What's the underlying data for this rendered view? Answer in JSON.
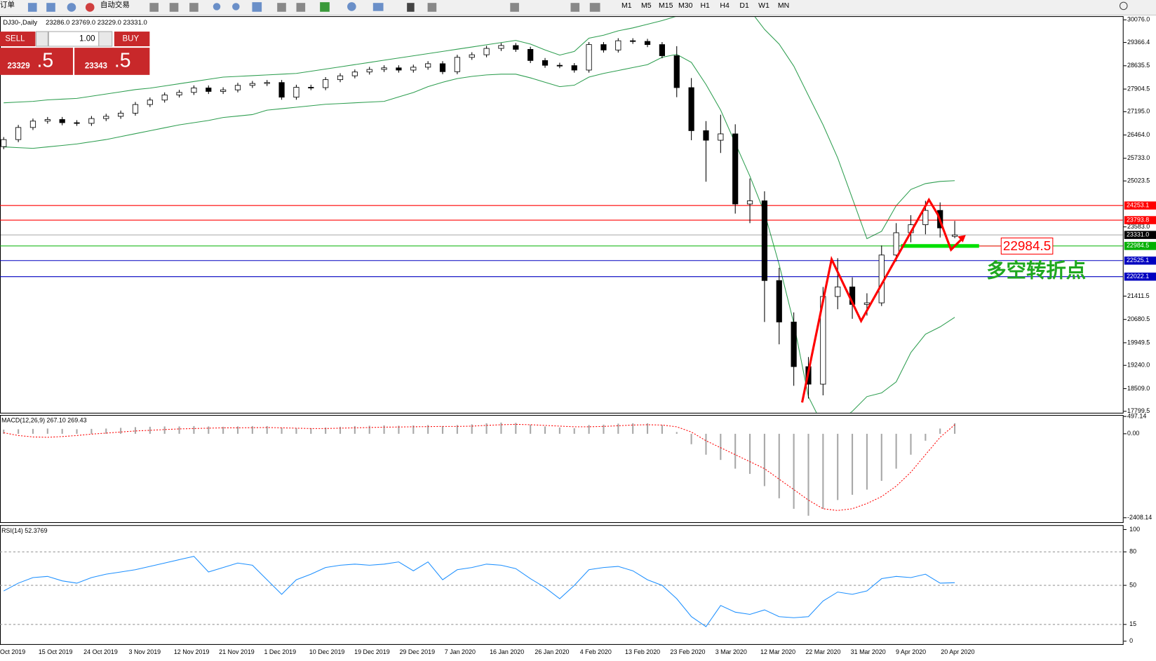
{
  "toolbar": {
    "order": "订单",
    "auto_trade": "自动交易",
    "timeframes": [
      "M1",
      "M5",
      "M15",
      "M30",
      "H1",
      "H4",
      "D1",
      "W1",
      "MN"
    ]
  },
  "trade_panel": {
    "sell": "SELL",
    "lots": "1.00",
    "buy": "BUY",
    "sell_main": "23329",
    "sell_tail": ".5",
    "buy_main": "23343",
    "buy_tail": ".5"
  },
  "chart_data": {
    "type": "candlestick",
    "title": "DJ30-,Daily",
    "ohlc_header": "23286.0 23769.0 23229.0 23331.0",
    "ylim": [
      17799.5,
      30076
    ],
    "yticks": [
      {
        "value": 30076,
        "label": "30076.0"
      },
      {
        "value": 29366.4,
        "label": "29366.4"
      },
      {
        "value": 28635.5,
        "label": "28635.5"
      },
      {
        "value": 27904.5,
        "label": "27904.5"
      },
      {
        "value": 27195,
        "label": "27195.0"
      },
      {
        "value": 26464,
        "label": "26464.0"
      },
      {
        "value": 25733,
        "label": "25733.0"
      },
      {
        "value": 25023.5,
        "label": "25023.5"
      },
      {
        "value": 23583,
        "label": "23583.0"
      },
      {
        "value": 21411.5,
        "label": "21411.5"
      },
      {
        "value": 20680.5,
        "label": "20680.5"
      },
      {
        "value": 19949.5,
        "label": "19949.5"
      },
      {
        "value": 19240,
        "label": "19240.0"
      },
      {
        "value": 18509,
        "label": "18509.0"
      },
      {
        "value": 17799.5,
        "label": "17799.5"
      }
    ],
    "levels": [
      {
        "value": 24253.1,
        "label": "24253.1",
        "color": "#ff0000"
      },
      {
        "value": 23793.8,
        "label": "23793.8",
        "color": "#ff0000"
      },
      {
        "value": 23331,
        "label": "23331.0",
        "color": "#000000"
      },
      {
        "value": 22984.5,
        "label": "22984.5",
        "color": "#00b000"
      },
      {
        "value": 22525.1,
        "label": "22525.1",
        "color": "#0000c0"
      },
      {
        "value": 22022.1,
        "label": "22022.1",
        "color": "#0000c0"
      }
    ],
    "x_labels": [
      "Oct 2019",
      "15 Oct 2019",
      "24 Oct 2019",
      "3 Nov 2019",
      "12 Nov 2019",
      "21 Nov 2019",
      "1 Dec 2019",
      "10 Dec 2019",
      "19 Dec 2019",
      "29 Dec 2019",
      "7 Jan 2020",
      "16 Jan 2020",
      "26 Jan 2020",
      "4 Feb 2020",
      "13 Feb 2020",
      "23 Feb 2020",
      "3 Mar 2020",
      "12 Mar 2020",
      "22 Mar 2020",
      "31 Mar 2020",
      "9 Apr 2020",
      "20 Apr 2020"
    ],
    "ohlc": [
      [
        26100,
        26400,
        26020,
        26320
      ],
      [
        26320,
        26780,
        26240,
        26700
      ],
      [
        26700,
        26980,
        26620,
        26900
      ],
      [
        26900,
        27030,
        26820,
        26950
      ],
      [
        26950,
        27030,
        26770,
        26850
      ],
      [
        26850,
        26930,
        26750,
        26830
      ],
      [
        26830,
        27060,
        26750,
        26980
      ],
      [
        26980,
        27130,
        26900,
        27050
      ],
      [
        27050,
        27230,
        26970,
        27150
      ],
      [
        27150,
        27500,
        27070,
        27420
      ],
      [
        27420,
        27640,
        27340,
        27560
      ],
      [
        27560,
        27800,
        27480,
        27720
      ],
      [
        27720,
        27880,
        27640,
        27800
      ],
      [
        27800,
        28020,
        27720,
        27940
      ],
      [
        27940,
        28020,
        27750,
        27830
      ],
      [
        27830,
        27960,
        27750,
        27880
      ],
      [
        27880,
        28100,
        27800,
        28020
      ],
      [
        28020,
        28160,
        27940,
        28080
      ],
      [
        28080,
        28190,
        28000,
        28110
      ],
      [
        28110,
        28190,
        27570,
        27650
      ],
      [
        27650,
        28040,
        27570,
        27960
      ],
      [
        27960,
        28040,
        27870,
        27950
      ],
      [
        27950,
        28280,
        27870,
        28200
      ],
      [
        28200,
        28400,
        28120,
        28320
      ],
      [
        28320,
        28520,
        28240,
        28440
      ],
      [
        28440,
        28600,
        28360,
        28520
      ],
      [
        28520,
        28650,
        28440,
        28570
      ],
      [
        28570,
        28650,
        28420,
        28500
      ],
      [
        28500,
        28670,
        28420,
        28590
      ],
      [
        28590,
        28780,
        28510,
        28700
      ],
      [
        28700,
        28780,
        28370,
        28450
      ],
      [
        28450,
        28980,
        28370,
        28900
      ],
      [
        28900,
        29060,
        28820,
        28980
      ],
      [
        28980,
        29260,
        28900,
        29180
      ],
      [
        29180,
        29350,
        29100,
        29270
      ],
      [
        29270,
        29350,
        29070,
        29150
      ],
      [
        29150,
        29230,
        28720,
        28800
      ],
      [
        28800,
        28880,
        28570,
        28650
      ],
      [
        28650,
        28730,
        28560,
        28640
      ],
      [
        28640,
        28720,
        28420,
        28500
      ],
      [
        28500,
        29380,
        28420,
        29300
      ],
      [
        29300,
        29380,
        29050,
        29130
      ],
      [
        29130,
        29500,
        29050,
        29420
      ],
      [
        29420,
        29500,
        29320,
        29400
      ],
      [
        29400,
        29480,
        29220,
        29300
      ],
      [
        29300,
        29380,
        28870,
        28950
      ],
      [
        28950,
        29250,
        27650,
        27950
      ],
      [
        27950,
        28250,
        26300,
        26600
      ],
      [
        26600,
        26900,
        25000,
        26300
      ],
      [
        26300,
        27100,
        25900,
        26500
      ],
      [
        26500,
        26800,
        24000,
        24300
      ],
      [
        24300,
        25100,
        23700,
        24400
      ],
      [
        24400,
        24700,
        20600,
        21900
      ],
      [
        21900,
        22300,
        19900,
        20600
      ],
      [
        20600,
        20900,
        18600,
        19200
      ],
      [
        19200,
        19500,
        18200,
        18650
      ],
      [
        18650,
        21700,
        18300,
        21400
      ],
      [
        21400,
        22600,
        21000,
        21700
      ],
      [
        21700,
        22000,
        20700,
        21150
      ],
      [
        21150,
        21500,
        20800,
        21200
      ],
      [
        21200,
        23000,
        21100,
        22700
      ],
      [
        22700,
        23700,
        22500,
        23400
      ],
      [
        23400,
        23950,
        23100,
        23650
      ],
      [
        23650,
        24400,
        23350,
        24100
      ],
      [
        24100,
        24350,
        23250,
        23550
      ],
      [
        23286,
        23769,
        23229,
        23331
      ]
    ],
    "band_color": "#2e9e50",
    "bollinger_upper": [
      27474,
      27497,
      27520,
      27566,
      27589,
      27612,
      27681,
      27750,
      27819,
      27888,
      27934,
      28003,
      28072,
      28141,
      28210,
      28280,
      28303,
      28326,
      28349,
      28372,
      28395,
      28464,
      28533,
      28602,
      28671,
      28740,
      28809,
      28878,
      28947,
      29016,
      29086,
      29155,
      29224,
      29293,
      29362,
      29431,
      29316,
      29132,
      28970,
      29086,
      29500,
      29592,
      29730,
      29822,
      29937,
      30053,
      30190,
      30283,
      30375,
      30420,
      30420,
      30375,
      29777,
      29316,
      28625,
      27704,
      26783,
      25747,
      24479,
      23213,
      23444,
      24249,
      24756,
      24940,
      25009,
      25032
    ],
    "bollinger_lower": [
      26092,
      26069,
      26046,
      26092,
      26138,
      26184,
      26253,
      26322,
      26414,
      26506,
      26598,
      26690,
      26783,
      26852,
      26921,
      27013,
      27059,
      27105,
      27243,
      27289,
      27335,
      27381,
      27428,
      27451,
      27474,
      27497,
      27520,
      27658,
      27796,
      27980,
      28118,
      28233,
      28303,
      28349,
      28372,
      28372,
      28257,
      28118,
      27980,
      28026,
      28280,
      28395,
      28487,
      28579,
      28671,
      28901,
      28993,
      28740,
      28049,
      27243,
      26207,
      25170,
      24019,
      22407,
      20564,
      18261,
      17340,
      17456,
      17799,
      18261,
      18376,
      18722,
      19643,
      20219,
      20449,
      20748
    ],
    "macd": {
      "label": "MACD(12,26,9) 267.10 269.43",
      "ylim": [
        -2408.14,
        497.14
      ],
      "yticks": [
        {
          "value": 497.14,
          "label": "497.14"
        },
        {
          "value": 0,
          "label": "0.00"
        },
        {
          "value": -2408.14,
          "label": "-2408.14"
        }
      ],
      "histogram": [
        120,
        130,
        140,
        150,
        140,
        130,
        140,
        150,
        170,
        190,
        200,
        210,
        210,
        220,
        210,
        200,
        210,
        220,
        220,
        170,
        160,
        160,
        180,
        200,
        220,
        230,
        240,
        230,
        240,
        250,
        220,
        250,
        270,
        300,
        320,
        310,
        260,
        210,
        180,
        160,
        250,
        260,
        290,
        300,
        300,
        250,
        50,
        -300,
        -600,
        -750,
        -1000,
        -1150,
        -1500,
        -1850,
        -2150,
        -2350,
        -2150,
        -1900,
        -1750,
        -1600,
        -1350,
        -1000,
        -600,
        -200,
        150,
        300
      ],
      "signal": [
        30,
        -50,
        -90,
        -100,
        -80,
        -50,
        -10,
        20,
        50,
        80,
        100,
        120,
        140,
        150,
        160,
        170,
        170,
        175,
        180,
        170,
        160,
        150,
        150,
        160,
        170,
        180,
        190,
        195,
        200,
        205,
        210,
        210,
        220,
        240,
        260,
        270,
        260,
        240,
        220,
        200,
        200,
        210,
        230,
        250,
        260,
        250,
        200,
        50,
        -200,
        -400,
        -600,
        -800,
        -1000,
        -1300,
        -1600,
        -1900,
        -2150,
        -2200,
        -2150,
        -2000,
        -1800,
        -1500,
        -1100,
        -600,
        -100,
        260
      ]
    },
    "rsi": {
      "label": "RSI(14) 52.3769",
      "ylim": [
        0,
        100
      ],
      "yticks": [
        100,
        80,
        50,
        15,
        0
      ],
      "grid": true,
      "color": "#1e90ff",
      "values": [
        45,
        52,
        57,
        58,
        54,
        52,
        57,
        60,
        62,
        64,
        67,
        70,
        73,
        76,
        62,
        66,
        70,
        68,
        55,
        42,
        55,
        60,
        66,
        68,
        69,
        68,
        69,
        71,
        63,
        71,
        55,
        64,
        66,
        69,
        68,
        65,
        56,
        48,
        38,
        50,
        64,
        66,
        67,
        63,
        55,
        50,
        38,
        22,
        13,
        32,
        26,
        24,
        28,
        22,
        21,
        22,
        36,
        44,
        42,
        45,
        56,
        58,
        57,
        60,
        52,
        52.3769
      ]
    }
  },
  "annotations": {
    "price_box": "22984.5",
    "turning_point": "多空转折点"
  }
}
